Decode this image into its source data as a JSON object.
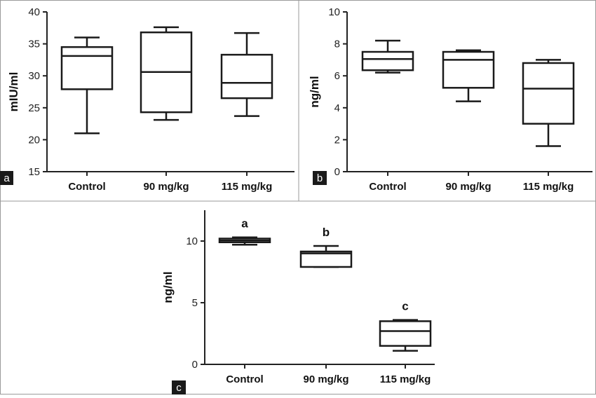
{
  "chart_data": [
    {
      "type": "box",
      "panel_label": "a",
      "ylabel": "mIU/ml",
      "ylim": [
        15,
        40
      ],
      "yticks": [
        "15",
        "20",
        "25",
        "30",
        "35",
        "40"
      ],
      "categories": [
        "Control",
        "90 mg/kg",
        "115 mg/kg"
      ],
      "boxes": [
        {
          "min": 21.0,
          "q1": 27.9,
          "median": 33.1,
          "q3": 34.5,
          "max": 36.0
        },
        {
          "min": 23.1,
          "q1": 24.3,
          "median": 30.6,
          "q3": 36.8,
          "max": 37.6
        },
        {
          "min": 23.7,
          "q1": 26.5,
          "median": 28.9,
          "q3": 33.3,
          "max": 36.7
        }
      ],
      "annotations": []
    },
    {
      "type": "box",
      "panel_label": "b",
      "ylabel": "ng/ml",
      "ylim": [
        0,
        10
      ],
      "yticks": [
        "0",
        "2",
        "4",
        "6",
        "8",
        "10"
      ],
      "categories": [
        "Control",
        "90 mg/kg",
        "115 mg/kg"
      ],
      "boxes": [
        {
          "min": 6.2,
          "q1": 6.35,
          "median": 7.05,
          "q3": 7.5,
          "max": 8.2
        },
        {
          "min": 4.4,
          "q1": 5.25,
          "median": 7.0,
          "q3": 7.5,
          "max": 7.6
        },
        {
          "min": 1.6,
          "q1": 3.0,
          "median": 5.2,
          "q3": 6.8,
          "max": 7.0
        }
      ],
      "annotations": []
    },
    {
      "type": "box",
      "panel_label": "c",
      "ylabel": "ng/ml",
      "ylim": [
        0,
        12.5
      ],
      "yticks": [
        "0",
        "5",
        "10"
      ],
      "categories": [
        "Control",
        "90 mg/kg",
        "115 mg/kg"
      ],
      "boxes": [
        {
          "min": 9.7,
          "q1": 9.9,
          "median": 10.05,
          "q3": 10.2,
          "max": 10.3
        },
        {
          "min": 7.9,
          "q1": 7.9,
          "median": 9.0,
          "q3": 9.15,
          "max": 9.6
        },
        {
          "min": 1.1,
          "q1": 1.5,
          "median": 2.7,
          "q3": 3.5,
          "max": 3.6
        }
      ],
      "annotations": [
        "a",
        "b",
        "c"
      ]
    }
  ]
}
